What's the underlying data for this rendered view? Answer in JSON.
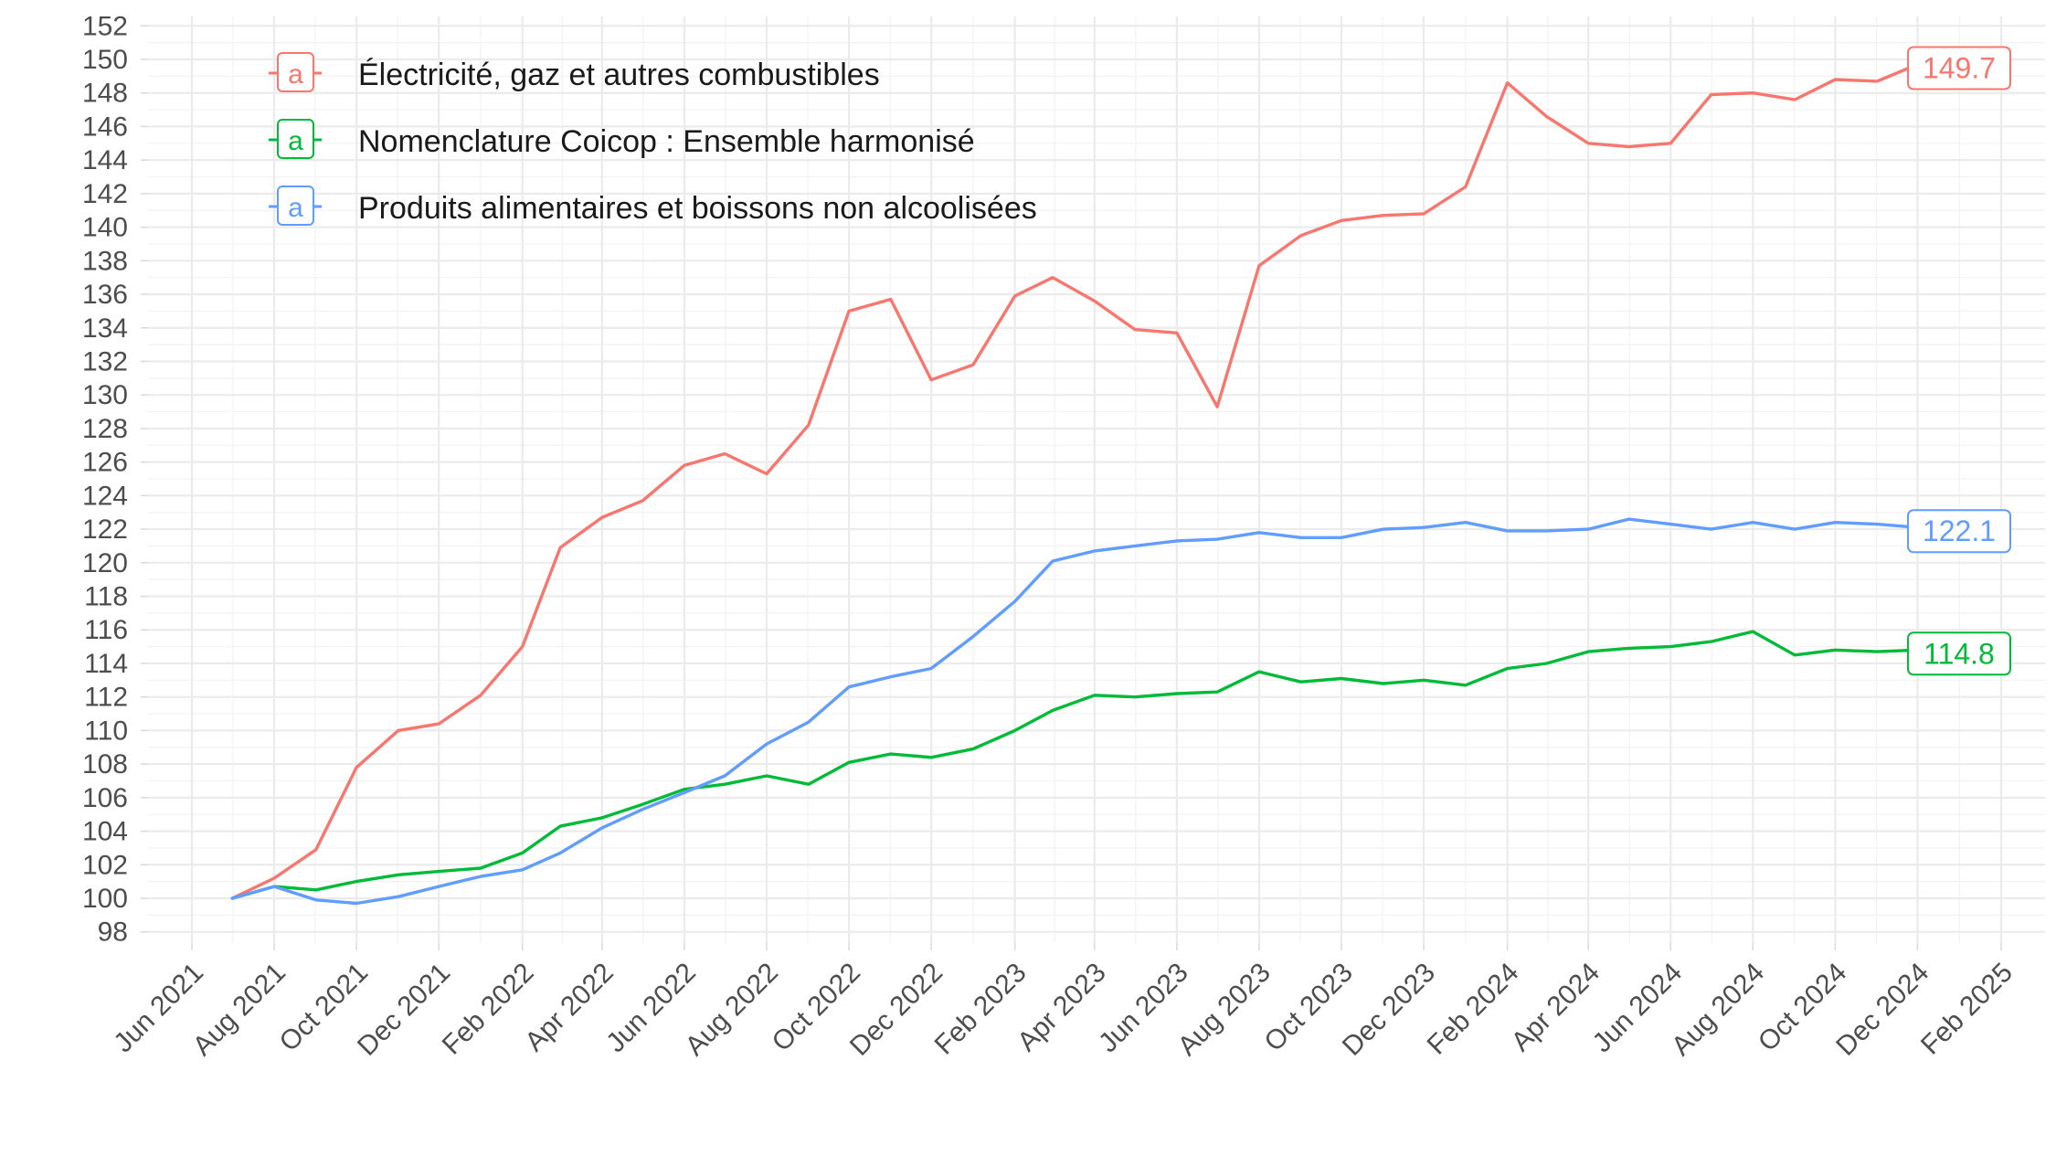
{
  "chart_data": {
    "type": "line",
    "title": "",
    "xlabel": "",
    "ylabel": "",
    "ylim": [
      98,
      152
    ],
    "xlim": [
      "2021-06-01",
      "2025-02-01"
    ],
    "grid": true,
    "legend_placement": "top-left",
    "legend_key_glyph": "a",
    "x_ticks": [
      {
        "date": "2021-06-01",
        "label": "Jun 2021"
      },
      {
        "date": "2021-08-01",
        "label": "Aug 2021"
      },
      {
        "date": "2021-10-01",
        "label": "Oct 2021"
      },
      {
        "date": "2021-12-01",
        "label": "Dec 2021"
      },
      {
        "date": "2022-02-01",
        "label": "Feb 2022"
      },
      {
        "date": "2022-04-01",
        "label": "Apr 2022"
      },
      {
        "date": "2022-06-01",
        "label": "Jun 2022"
      },
      {
        "date": "2022-08-01",
        "label": "Aug 2022"
      },
      {
        "date": "2022-10-01",
        "label": "Oct 2022"
      },
      {
        "date": "2022-12-01",
        "label": "Dec 2022"
      },
      {
        "date": "2023-02-01",
        "label": "Feb 2023"
      },
      {
        "date": "2023-04-01",
        "label": "Apr 2023"
      },
      {
        "date": "2023-06-01",
        "label": "Jun 2023"
      },
      {
        "date": "2023-08-01",
        "label": "Aug 2023"
      },
      {
        "date": "2023-10-01",
        "label": "Oct 2023"
      },
      {
        "date": "2023-12-01",
        "label": "Dec 2023"
      },
      {
        "date": "2024-02-01",
        "label": "Feb 2024"
      },
      {
        "date": "2024-04-01",
        "label": "Apr 2024"
      },
      {
        "date": "2024-06-01",
        "label": "Jun 2024"
      },
      {
        "date": "2024-08-01",
        "label": "Aug 2024"
      },
      {
        "date": "2024-10-01",
        "label": "Oct 2024"
      },
      {
        "date": "2024-12-01",
        "label": "Dec 2024"
      },
      {
        "date": "2025-02-01",
        "label": "Feb 2025"
      }
    ],
    "y_ticks": [
      98,
      100,
      102,
      104,
      106,
      108,
      110,
      112,
      114,
      116,
      118,
      120,
      122,
      124,
      126,
      128,
      130,
      132,
      134,
      136,
      138,
      140,
      142,
      144,
      146,
      148,
      150,
      152
    ],
    "x": [
      "2021-07-01",
      "2021-08-01",
      "2021-09-01",
      "2021-10-01",
      "2021-11-01",
      "2021-12-01",
      "2022-01-01",
      "2022-02-01",
      "2022-03-01",
      "2022-04-01",
      "2022-05-01",
      "2022-06-01",
      "2022-07-01",
      "2022-08-01",
      "2022-09-01",
      "2022-10-01",
      "2022-11-01",
      "2022-12-01",
      "2023-01-01",
      "2023-02-01",
      "2023-03-01",
      "2023-04-01",
      "2023-05-01",
      "2023-06-01",
      "2023-07-01",
      "2023-08-01",
      "2023-09-01",
      "2023-10-01",
      "2023-11-01",
      "2023-12-01",
      "2024-01-01",
      "2024-02-01",
      "2024-03-01",
      "2024-04-01",
      "2024-05-01",
      "2024-06-01",
      "2024-07-01",
      "2024-08-01",
      "2024-09-01",
      "2024-10-01",
      "2024-11-01",
      "2024-12-01"
    ],
    "series": [
      {
        "name": "Électricité, gaz et autres combustibles",
        "color": "#F8766D",
        "end_label": "149.7",
        "values": [
          100.0,
          101.2,
          102.9,
          107.8,
          110.0,
          110.4,
          112.1,
          115.0,
          120.9,
          122.7,
          123.7,
          125.8,
          126.5,
          125.3,
          128.2,
          135.0,
          135.7,
          130.9,
          131.8,
          135.9,
          137.0,
          135.6,
          133.9,
          133.7,
          129.3,
          137.7,
          139.5,
          140.4,
          140.7,
          140.8,
          142.4,
          148.6,
          146.6,
          145.0,
          144.8,
          145.0,
          147.9,
          148.0,
          147.6,
          148.8,
          148.7,
          149.7
        ]
      },
      {
        "name": "Nomenclature Coicop : Ensemble harmonisé",
        "color": "#00BA38",
        "end_label": "114.8",
        "values": [
          100.0,
          100.7,
          100.5,
          101.0,
          101.4,
          101.6,
          101.8,
          102.7,
          104.3,
          104.8,
          105.6,
          106.5,
          106.8,
          107.3,
          106.8,
          108.1,
          108.6,
          108.4,
          108.9,
          110.0,
          111.2,
          112.1,
          112.0,
          112.2,
          112.3,
          113.5,
          112.9,
          113.1,
          112.8,
          113.0,
          112.7,
          113.7,
          114.0,
          114.7,
          114.9,
          115.0,
          115.3,
          115.9,
          114.5,
          114.8,
          114.7,
          114.8
        ]
      },
      {
        "name": "Produits alimentaires et boissons non alcoolisées",
        "color": "#619CFF",
        "end_label": "122.1",
        "values": [
          100.0,
          100.7,
          99.9,
          99.7,
          100.1,
          100.7,
          101.3,
          101.7,
          102.7,
          104.2,
          105.3,
          106.3,
          107.3,
          109.2,
          110.5,
          112.6,
          113.2,
          113.7,
          115.6,
          117.7,
          120.1,
          120.7,
          121.0,
          121.3,
          121.4,
          121.8,
          121.5,
          121.5,
          122.0,
          122.1,
          122.4,
          121.9,
          121.9,
          122.0,
          122.6,
          122.3,
          122.0,
          122.4,
          122.0,
          122.4,
          122.3,
          122.1
        ]
      }
    ]
  }
}
